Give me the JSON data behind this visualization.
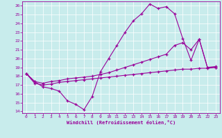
{
  "xlabel": "Windchill (Refroidissement éolien,°C)",
  "bg_color": "#c8ecec",
  "grid_color": "#ffffff",
  "line_color": "#990099",
  "xlim": [
    -0.5,
    23.5
  ],
  "ylim": [
    13.8,
    26.5
  ],
  "xticks": [
    0,
    1,
    2,
    3,
    4,
    5,
    6,
    7,
    8,
    9,
    10,
    11,
    12,
    13,
    14,
    15,
    16,
    17,
    18,
    19,
    20,
    21,
    22,
    23
  ],
  "yticks": [
    14,
    15,
    16,
    17,
    18,
    19,
    20,
    21,
    22,
    23,
    24,
    25,
    26
  ],
  "curve1_x": [
    0,
    1,
    2,
    3,
    4,
    5,
    6,
    7,
    8,
    9,
    10,
    11,
    12,
    13,
    14,
    15,
    16,
    17,
    18,
    19,
    20,
    21,
    22,
    23
  ],
  "curve1_y": [
    18.3,
    17.4,
    16.8,
    16.6,
    16.3,
    15.2,
    14.8,
    14.2,
    15.7,
    18.5,
    20.0,
    21.5,
    23.0,
    24.3,
    25.1,
    26.2,
    25.7,
    25.9,
    25.1,
    22.3,
    19.8,
    22.2,
    19.0,
    19.0
  ],
  "curve2_x": [
    0,
    1,
    2,
    3,
    4,
    5,
    6,
    7,
    8,
    9,
    10,
    11,
    12,
    13,
    14,
    15,
    16,
    17,
    18,
    19,
    20,
    21,
    22,
    23
  ],
  "curve2_y": [
    18.3,
    17.4,
    17.2,
    17.4,
    17.5,
    17.7,
    17.8,
    17.9,
    18.0,
    18.2,
    18.4,
    18.7,
    19.0,
    19.3,
    19.6,
    19.9,
    20.2,
    20.5,
    21.5,
    21.8,
    21.0,
    22.2,
    19.0,
    19.1
  ],
  "curve3_x": [
    0,
    1,
    2,
    3,
    4,
    5,
    6,
    7,
    8,
    9,
    10,
    11,
    12,
    13,
    14,
    15,
    16,
    17,
    18,
    19,
    20,
    21,
    22,
    23
  ],
  "curve3_y": [
    18.3,
    17.2,
    17.0,
    17.1,
    17.3,
    17.4,
    17.5,
    17.6,
    17.7,
    17.8,
    17.9,
    18.0,
    18.1,
    18.2,
    18.3,
    18.4,
    18.5,
    18.6,
    18.7,
    18.8,
    18.8,
    18.9,
    18.9,
    19.0
  ]
}
